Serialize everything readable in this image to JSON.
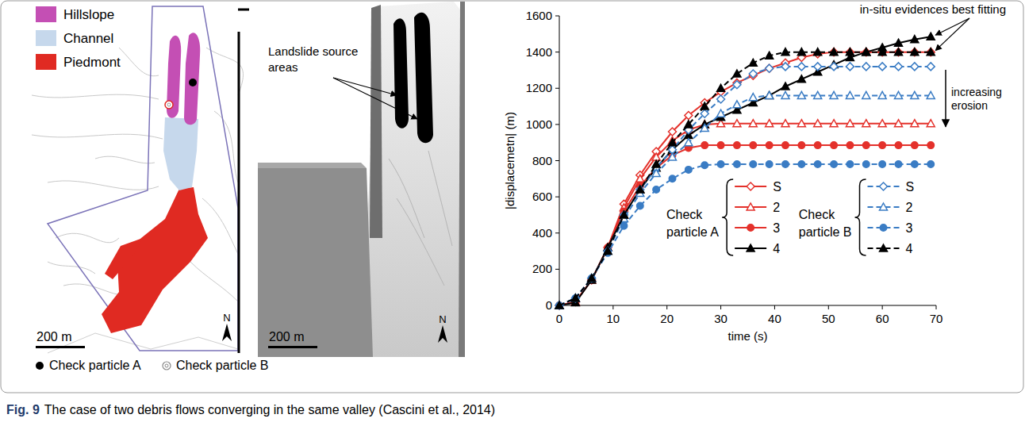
{
  "chart_data": {
    "type": "line",
    "x_label": "time (s)",
    "y_label": "|displacemetn| (m)",
    "x": [
      0,
      3,
      6,
      9,
      12,
      15,
      18,
      21,
      24,
      27,
      30,
      33,
      36,
      39,
      42,
      45,
      48,
      51,
      54,
      57,
      60,
      63,
      66,
      69
    ],
    "xlim": [
      0,
      70
    ],
    "ylim": [
      0,
      1600
    ],
    "xticks": [
      0,
      10,
      20,
      30,
      40,
      50,
      60,
      70
    ],
    "yticks": [
      0,
      200,
      400,
      600,
      800,
      1000,
      1200,
      1400,
      1600
    ],
    "grid": false,
    "series": [
      {
        "name": "S",
        "group": "Check particle A",
        "color": "#e4312b",
        "marker": "diamond-open",
        "line_style": "solid",
        "values": [
          0,
          20,
          140,
          320,
          560,
          720,
          850,
          960,
          1050,
          1120,
          1180,
          1230,
          1270,
          1310,
          1340,
          1370,
          1390,
          1400,
          1400,
          1400,
          1400,
          1400,
          1400,
          1400
        ]
      },
      {
        "name": "2",
        "group": "Check particle A",
        "color": "#e4312b",
        "marker": "triangle-open",
        "line_style": "solid",
        "values": [
          0,
          20,
          140,
          320,
          540,
          700,
          820,
          910,
          970,
          1000,
          1005,
          1005,
          1005,
          1005,
          1005,
          1005,
          1005,
          1005,
          1005,
          1005,
          1005,
          1005,
          1005,
          1005
        ]
      },
      {
        "name": "3",
        "group": "Check particle A",
        "color": "#e4312b",
        "marker": "circle",
        "line_style": "solid",
        "values": [
          0,
          20,
          140,
          320,
          520,
          660,
          760,
          830,
          870,
          885,
          885,
          885,
          885,
          885,
          885,
          885,
          885,
          885,
          885,
          885,
          885,
          885,
          885,
          885
        ]
      },
      {
        "name": "4",
        "group": "Check particle A",
        "color": "#000000",
        "marker": "triangle",
        "line_style": "solid",
        "values": [
          0,
          15,
          140,
          320,
          500,
          640,
          760,
          860,
          940,
          1000,
          1040,
          1080,
          1120,
          1160,
          1210,
          1250,
          1290,
          1330,
          1370,
          1400,
          1425,
          1450,
          1470,
          1485
        ]
      },
      {
        "name": "S",
        "group": "Check particle B",
        "color": "#3a7cc4",
        "marker": "diamond-open",
        "line_style": "dashed",
        "values": [
          0,
          40,
          150,
          300,
          500,
          640,
          760,
          860,
          970,
          1060,
          1140,
          1220,
          1280,
          1310,
          1320,
          1320,
          1320,
          1320,
          1320,
          1320,
          1320,
          1320,
          1320,
          1320
        ]
      },
      {
        "name": "2",
        "group": "Check particle B",
        "color": "#3a7cc4",
        "marker": "triangle-open",
        "line_style": "dashed",
        "values": [
          0,
          40,
          150,
          300,
          480,
          620,
          730,
          820,
          900,
          980,
          1060,
          1110,
          1150,
          1160,
          1160,
          1160,
          1160,
          1160,
          1160,
          1160,
          1160,
          1160,
          1160,
          1160
        ]
      },
      {
        "name": "3",
        "group": "Check particle B",
        "color": "#3a7cc4",
        "marker": "circle",
        "line_style": "dashed",
        "values": [
          0,
          40,
          150,
          290,
          440,
          550,
          640,
          700,
          750,
          775,
          780,
          780,
          780,
          780,
          780,
          780,
          780,
          780,
          780,
          780,
          780,
          780,
          780,
          780
        ]
      },
      {
        "name": "4",
        "group": "Check particle B",
        "color": "#000000",
        "marker": "triangle",
        "line_style": "dashed",
        "values": [
          0,
          40,
          150,
          300,
          500,
          640,
          780,
          900,
          1000,
          1100,
          1200,
          1280,
          1340,
          1380,
          1400,
          1400,
          1400,
          1400,
          1400,
          1400,
          1400,
          1400,
          1400,
          1400
        ]
      }
    ],
    "annotations": [
      {
        "text": "in-situ evidences  best fitting"
      },
      {
        "text": "increasing erosion"
      }
    ]
  },
  "map_panel": {
    "legend": [
      {
        "label": "Hillslope",
        "color": "#c44fb4"
      },
      {
        "label": "Channel",
        "color": "#c6d8ec"
      },
      {
        "label": "Piedmont",
        "color": "#e02a22"
      }
    ],
    "markers": [
      {
        "label": "Check particle A"
      },
      {
        "label": "Check particle B"
      }
    ],
    "scale_label": "200 m",
    "north": "N"
  },
  "render_panel": {
    "annotation": "Landslide source areas",
    "scale_label": "200 m",
    "north": "N"
  },
  "figure": {
    "caption_label": "Fig. 9",
    "caption": "The case of two debris flows converging in the same valley (Cascini et al., 2014)"
  }
}
